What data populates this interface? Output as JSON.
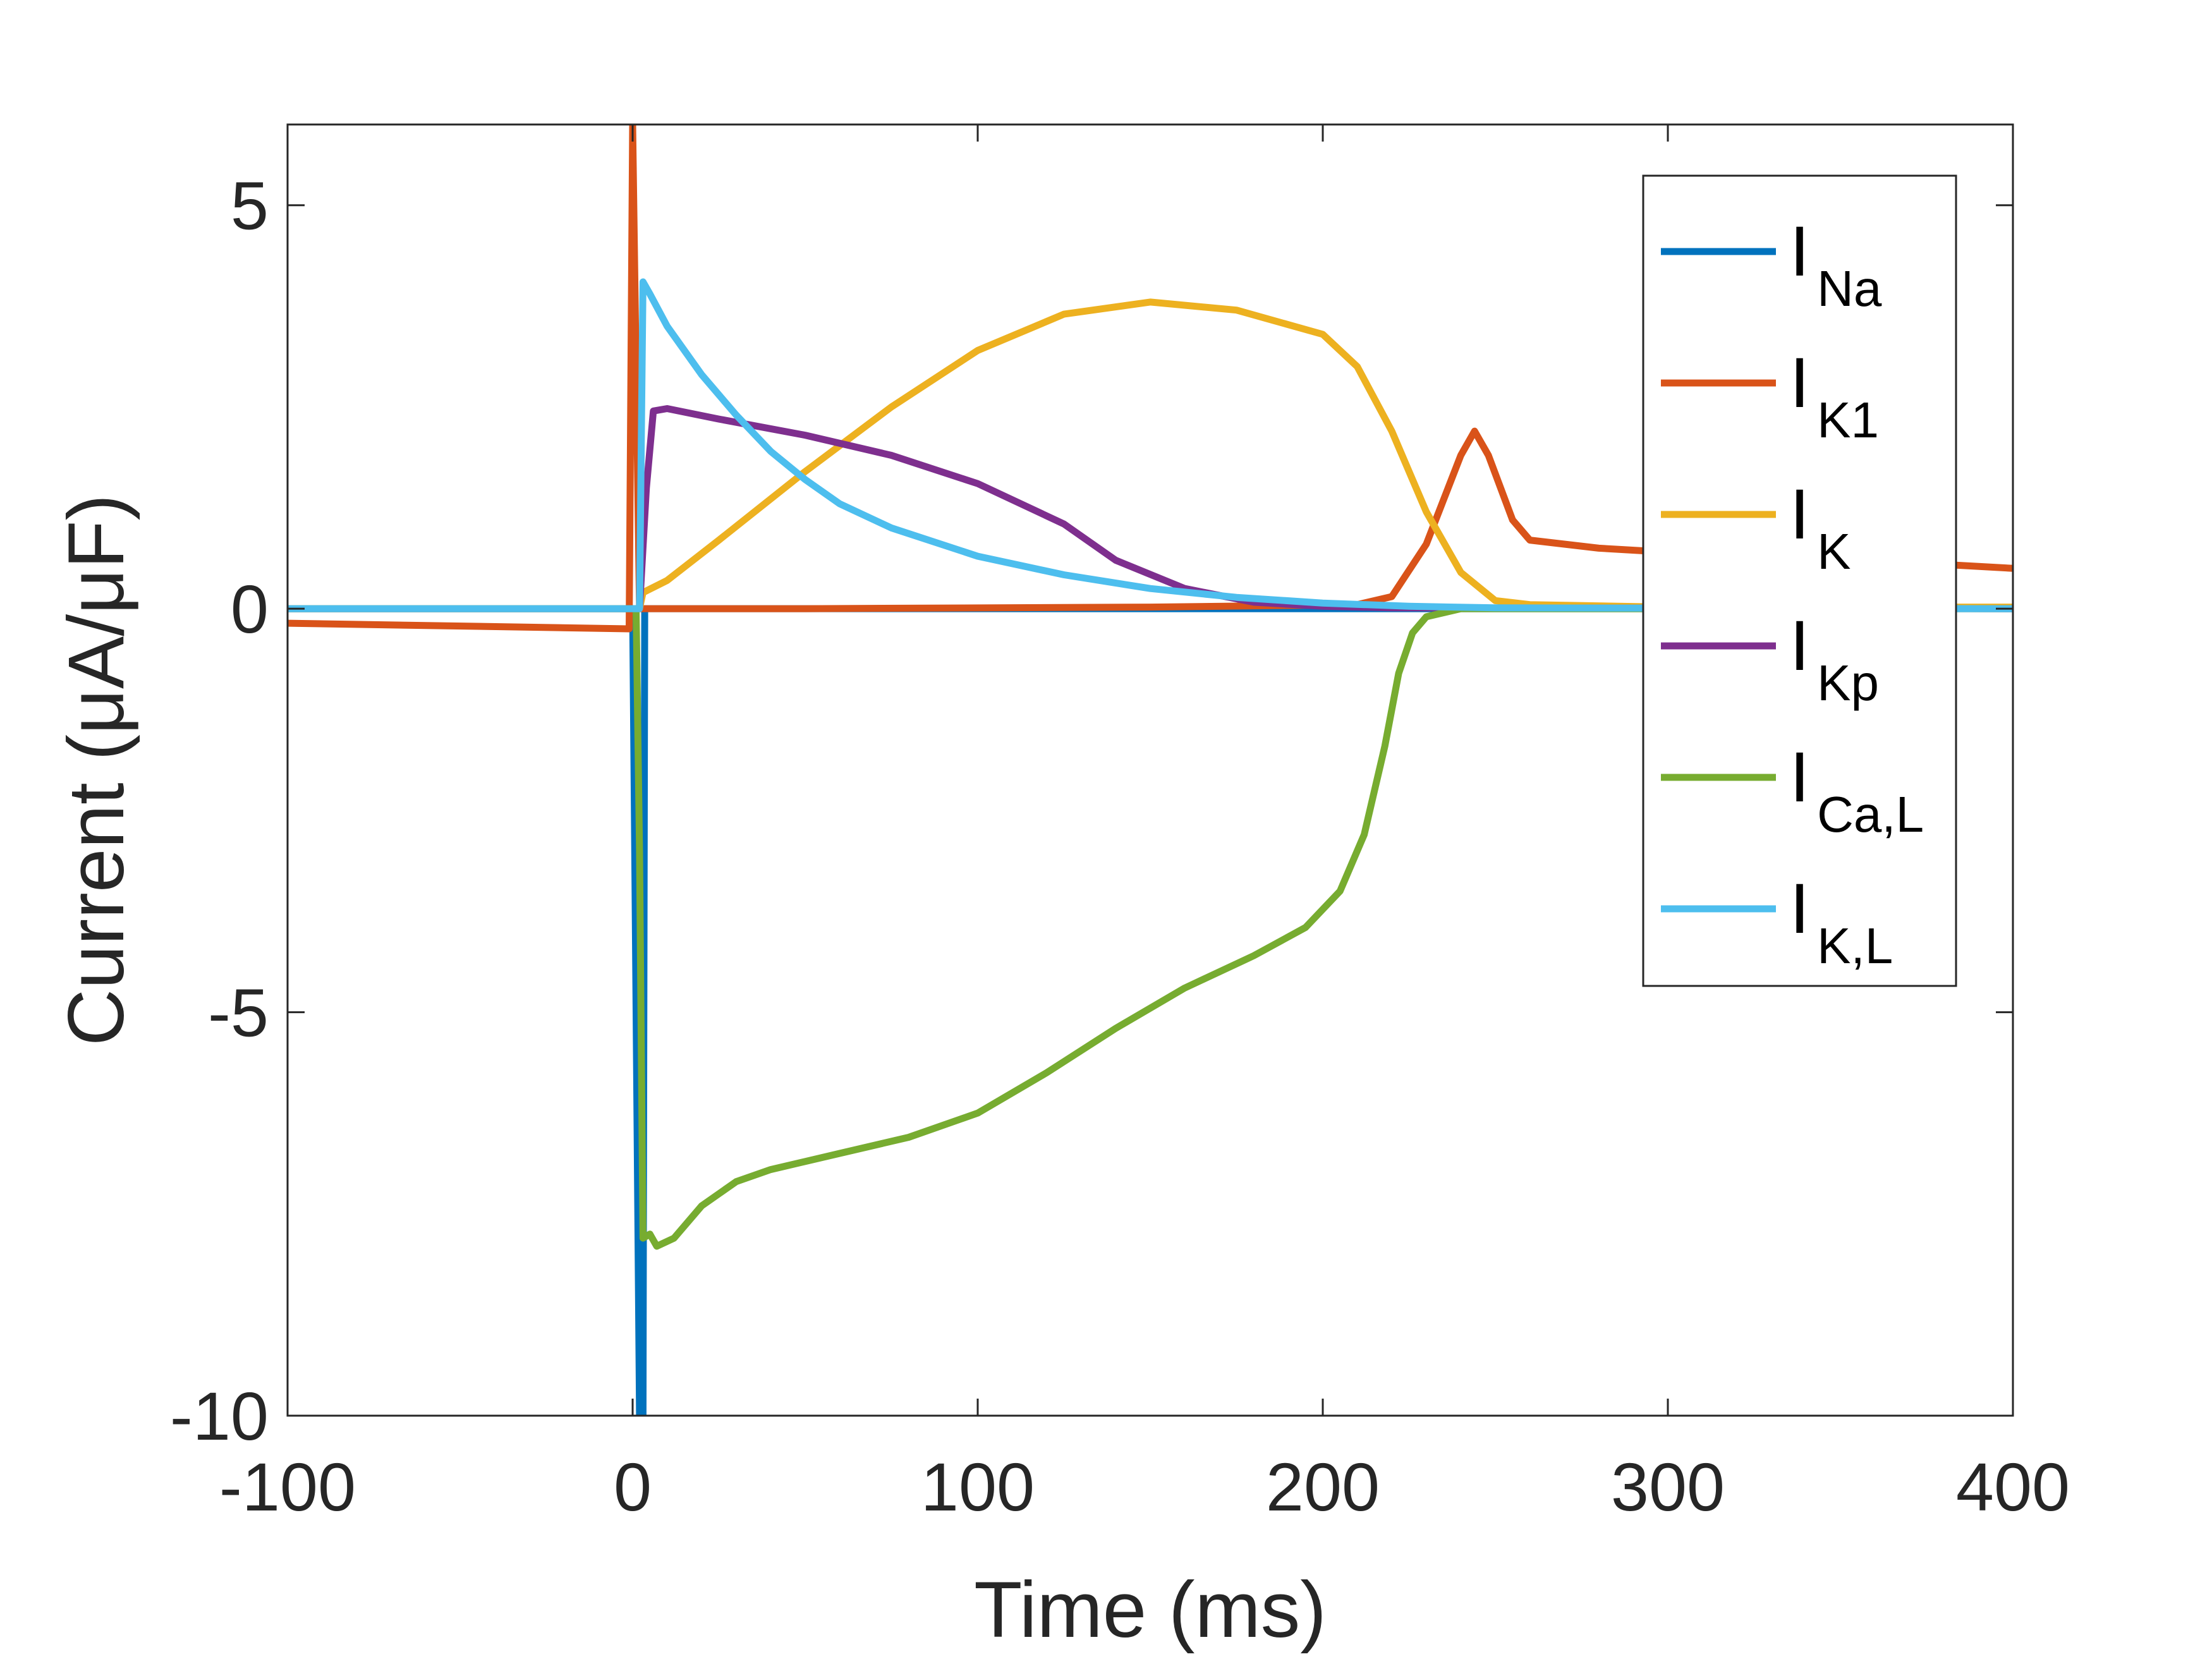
{
  "chart_data": {
    "type": "line",
    "title": "",
    "xlabel": "Time (ms)",
    "ylabel": "Current (μA/μF)",
    "xlim": [
      -100,
      400
    ],
    "ylim": [
      -10,
      6
    ],
    "xticks": [
      -100,
      0,
      100,
      200,
      300,
      400
    ],
    "yticks": [
      -10,
      -5,
      0,
      5
    ],
    "xtick_labels": [
      "-100",
      "0",
      "100",
      "200",
      "300",
      "400"
    ],
    "ytick_labels": [
      "-10",
      "-5",
      "0",
      "5"
    ],
    "grid": false,
    "legend_position": "top-right",
    "series": [
      {
        "name": "I_Na",
        "legend_main": "I",
        "legend_sub": "Na",
        "color": "#0072BD",
        "points": [
          [
            -100,
            0
          ],
          [
            0,
            0
          ],
          [
            1,
            -5
          ],
          [
            2,
            -10
          ],
          [
            3,
            -10
          ],
          [
            3.5,
            0
          ],
          [
            400,
            0
          ]
        ]
      },
      {
        "name": "I_K1",
        "legend_main": "I",
        "legend_sub": "K1",
        "color": "#D95319",
        "points": [
          [
            -100,
            -0.18
          ],
          [
            -1,
            -0.25
          ],
          [
            0,
            6
          ],
          [
            2,
            0
          ],
          [
            50,
            0
          ],
          [
            150,
            0.02
          ],
          [
            210,
            0.05
          ],
          [
            220,
            0.15
          ],
          [
            230,
            0.8
          ],
          [
            240,
            1.9
          ],
          [
            244,
            2.2
          ],
          [
            248,
            1.9
          ],
          [
            255,
            1.1
          ],
          [
            260,
            0.85
          ],
          [
            280,
            0.75
          ],
          [
            300,
            0.7
          ],
          [
            350,
            0.62
          ],
          [
            400,
            0.5
          ]
        ]
      },
      {
        "name": "I_K",
        "legend_main": "I",
        "legend_sub": "K",
        "color": "#EDB120",
        "points": [
          [
            -100,
            0
          ],
          [
            2,
            0
          ],
          [
            3,
            0.2
          ],
          [
            10,
            0.35
          ],
          [
            25,
            0.85
          ],
          [
            50,
            1.7
          ],
          [
            75,
            2.5
          ],
          [
            100,
            3.2
          ],
          [
            125,
            3.65
          ],
          [
            150,
            3.8
          ],
          [
            175,
            3.7
          ],
          [
            200,
            3.4
          ],
          [
            210,
            3.0
          ],
          [
            220,
            2.2
          ],
          [
            230,
            1.2
          ],
          [
            240,
            0.45
          ],
          [
            250,
            0.1
          ],
          [
            260,
            0.05
          ],
          [
            300,
            0.02
          ],
          [
            400,
            0.02
          ]
        ]
      },
      {
        "name": "I_Kp",
        "legend_main": "I",
        "legend_sub": "Kp",
        "color": "#7E2F8E",
        "points": [
          [
            -100,
            0
          ],
          [
            2,
            0
          ],
          [
            4,
            1.5
          ],
          [
            6,
            2.45
          ],
          [
            10,
            2.48
          ],
          [
            25,
            2.35
          ],
          [
            50,
            2.15
          ],
          [
            75,
            1.9
          ],
          [
            100,
            1.55
          ],
          [
            125,
            1.05
          ],
          [
            140,
            0.6
          ],
          [
            160,
            0.25
          ],
          [
            180,
            0.08
          ],
          [
            200,
            0.03
          ],
          [
            220,
            0.01
          ],
          [
            400,
            0
          ]
        ]
      },
      {
        "name": "I_Ca,L",
        "legend_main": "I",
        "legend_sub": "Ca,L",
        "color": "#77AC30",
        "points": [
          [
            -100,
            0
          ],
          [
            1,
            0
          ],
          [
            2,
            -3
          ],
          [
            3,
            -7.8
          ],
          [
            5,
            -7.75
          ],
          [
            7,
            -7.9
          ],
          [
            12,
            -7.8
          ],
          [
            20,
            -7.4
          ],
          [
            30,
            -7.1
          ],
          [
            40,
            -6.95
          ],
          [
            60,
            -6.75
          ],
          [
            80,
            -6.55
          ],
          [
            100,
            -6.25
          ],
          [
            120,
            -5.75
          ],
          [
            140,
            -5.2
          ],
          [
            160,
            -4.7
          ],
          [
            180,
            -4.3
          ],
          [
            195,
            -3.95
          ],
          [
            205,
            -3.5
          ],
          [
            212,
            -2.8
          ],
          [
            218,
            -1.7
          ],
          [
            222,
            -0.8
          ],
          [
            226,
            -0.3
          ],
          [
            230,
            -0.1
          ],
          [
            240,
            0
          ],
          [
            400,
            0
          ]
        ]
      },
      {
        "name": "I_K,L",
        "legend_main": "I",
        "legend_sub": "K,L",
        "color": "#4DBEEE",
        "points": [
          [
            -100,
            0
          ],
          [
            2,
            0
          ],
          [
            3,
            4.05
          ],
          [
            5,
            3.9
          ],
          [
            10,
            3.5
          ],
          [
            20,
            2.9
          ],
          [
            30,
            2.4
          ],
          [
            40,
            1.95
          ],
          [
            50,
            1.6
          ],
          [
            60,
            1.3
          ],
          [
            75,
            1.0
          ],
          [
            100,
            0.65
          ],
          [
            125,
            0.42
          ],
          [
            150,
            0.25
          ],
          [
            175,
            0.14
          ],
          [
            200,
            0.07
          ],
          [
            225,
            0.03
          ],
          [
            250,
            0.01
          ],
          [
            400,
            0
          ]
        ]
      }
    ]
  }
}
